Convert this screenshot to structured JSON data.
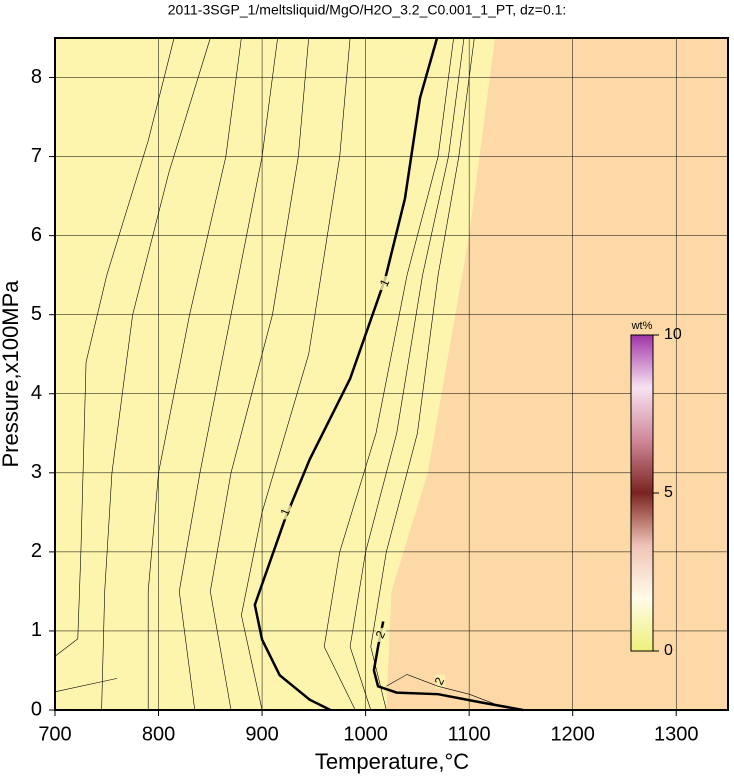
{
  "chart_data": {
    "type": "contour",
    "title": "2011-3SGP_1/meltsliquid/MgO/H2O_3.2_C0.001_1_PT, dz=0.1:",
    "x_label": "Temperature,°C",
    "y_label": "Pressure,x100MPa",
    "xlim": [
      700,
      1350
    ],
    "ylim": [
      0,
      8.5
    ],
    "xticks": [
      700,
      800,
      900,
      1000,
      1100,
      1200,
      1300
    ],
    "yticks": [
      0,
      1,
      2,
      3,
      4,
      5,
      6,
      7,
      8
    ],
    "grid": true,
    "background": "#fdf4ae",
    "region": {
      "color": "#fcd9a6",
      "x": [
        1020,
        1025,
        1060,
        1080,
        1100,
        1125
      ],
      "y": [
        0,
        1.5,
        3,
        4.5,
        6,
        8.5
      ]
    },
    "contours": [
      {
        "level": 1,
        "bold": true,
        "x": [
          966,
          946,
          917,
          900,
          893,
          922,
          946,
          985,
          1019,
          1038,
          1052.5,
          1069
        ],
        "y": [
          0,
          0.13,
          0.44,
          0.89,
          1.33,
          2.41,
          3.17,
          4.19,
          5.46,
          6.47,
          7.74,
          8.5
        ],
        "label_positions": [
          {
            "x": 923,
            "y": 2.5
          },
          {
            "x": 1019,
            "y": 5.4
          }
        ]
      },
      {
        "level": 2,
        "bold": true,
        "x": [
          1017,
          1012,
          1008,
          1012,
          1030,
          1070,
          1110,
          1152
        ],
        "y": [
          1.12,
          0.8,
          0.5,
          0.3,
          0.22,
          0.2,
          0.1,
          0
        ],
        "label_positions": [
          {
            "x": 1015,
            "y": 0.95
          },
          {
            "x": 1072,
            "y": 0.36
          }
        ]
      },
      {
        "bold": false,
        "x": [
          700,
          760
        ],
        "y": [
          0.23,
          0.4
        ]
      },
      {
        "bold": false,
        "x": [
          700,
          722,
          725,
          730,
          750,
          790,
          815
        ],
        "y": [
          0.68,
          0.9,
          2,
          4.4,
          5.5,
          7.2,
          8.5
        ]
      },
      {
        "bold": false,
        "x": [
          745,
          748,
          755,
          775,
          810,
          850
        ],
        "y": [
          0,
          1.5,
          3,
          5,
          6.8,
          8.5
        ]
      },
      {
        "bold": false,
        "x": [
          790,
          790,
          800,
          830,
          865,
          880
        ],
        "y": [
          0,
          1.5,
          3,
          5,
          7,
          8.5
        ]
      },
      {
        "bold": false,
        "x": [
          835,
          820,
          840,
          870,
          900,
          915
        ],
        "y": [
          0,
          1.5,
          3,
          5,
          7,
          8.5
        ]
      },
      {
        "bold": false,
        "x": [
          870,
          850,
          870,
          910,
          935,
          945
        ],
        "y": [
          0,
          1.5,
          3,
          5,
          7,
          8.5
        ]
      },
      {
        "bold": false,
        "x": [
          900,
          880,
          900,
          945,
          975,
          985
        ],
        "y": [
          0,
          1.2,
          2.5,
          4.5,
          7,
          8.5
        ]
      },
      {
        "bold": false,
        "x": [
          990,
          960,
          975,
          1010,
          1040,
          1070,
          1085
        ],
        "y": [
          0,
          0.8,
          2,
          3.5,
          5.5,
          7,
          8.5
        ]
      },
      {
        "bold": false,
        "x": [
          1005,
          985,
          1000,
          1030,
          1055,
          1080,
          1095
        ],
        "y": [
          0,
          0.8,
          2,
          3.5,
          5.5,
          7,
          8.5
        ]
      },
      {
        "bold": false,
        "x": [
          1020,
          1005,
          1020,
          1050,
          1070,
          1090,
          1105
        ],
        "y": [
          0,
          0.8,
          2,
          3.5,
          5.5,
          7,
          8.5
        ]
      },
      {
        "bold": false,
        "x": [
          1020,
          1040,
          1070,
          1100,
          1130
        ],
        "y": [
          0.3,
          0.45,
          0.3,
          0.2,
          0.05
        ]
      }
    ],
    "colorbar": {
      "label": "wt%",
      "lim": [
        0,
        10
      ],
      "ticks": [
        0,
        5,
        10
      ],
      "colors": [
        "#eef07a",
        "#fffbe8",
        "#f0c4b8",
        "#7a2420",
        "#d08898",
        "#f8e2f2",
        "#a034a8"
      ]
    }
  }
}
